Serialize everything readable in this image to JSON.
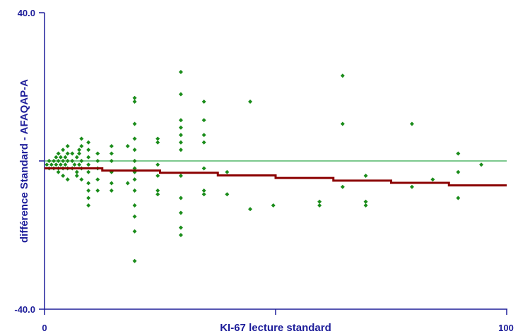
{
  "chart_data": {
    "type": "scatter",
    "title": "",
    "xlabel": "KI-67 lecture standard",
    "ylabel": "différence Standard - AFAQAP-A",
    "xlim": [
      0,
      100
    ],
    "ylim": [
      -40,
      40
    ],
    "x_tick_labels": [
      "0",
      "100"
    ],
    "y_tick_labels": [
      "40.0",
      "-40.0"
    ],
    "grid": false,
    "colors": {
      "points": "#1a8c1a",
      "reference_line": "#2ea84a",
      "trend_line": "#8b0000",
      "axis": "#1e1e9a"
    },
    "reference_line": {
      "y": 0
    },
    "trend_steps": [
      {
        "x0": 0,
        "x1": 12.5,
        "y": -2.0
      },
      {
        "x0": 12.5,
        "x1": 25,
        "y": -2.6
      },
      {
        "x0": 25,
        "x1": 37.5,
        "y": -3.2
      },
      {
        "x0": 37.5,
        "x1": 50,
        "y": -3.9
      },
      {
        "x0": 50,
        "x1": 62.5,
        "y": -4.6
      },
      {
        "x0": 62.5,
        "x1": 75,
        "y": -5.3
      },
      {
        "x0": 75,
        "x1": 87.5,
        "y": -5.9
      },
      {
        "x0": 87.5,
        "x1": 100,
        "y": -6.6
      }
    ],
    "points": [
      {
        "x": 0.5,
        "y": -1
      },
      {
        "x": 1,
        "y": -2
      },
      {
        "x": 1,
        "y": 0
      },
      {
        "x": 1.5,
        "y": -1
      },
      {
        "x": 2,
        "y": 0
      },
      {
        "x": 2,
        "y": -2
      },
      {
        "x": 2.5,
        "y": 1
      },
      {
        "x": 2.5,
        "y": -1
      },
      {
        "x": 3,
        "y": 0
      },
      {
        "x": 3,
        "y": -2
      },
      {
        "x": 3,
        "y": 2
      },
      {
        "x": 3,
        "y": -3
      },
      {
        "x": 3.5,
        "y": 1
      },
      {
        "x": 3.5,
        "y": -1
      },
      {
        "x": 4,
        "y": 0
      },
      {
        "x": 4,
        "y": -2
      },
      {
        "x": 4,
        "y": 3
      },
      {
        "x": 4,
        "y": -4
      },
      {
        "x": 4.5,
        "y": 1
      },
      {
        "x": 4.5,
        "y": -1
      },
      {
        "x": 5,
        "y": 0
      },
      {
        "x": 5,
        "y": 2
      },
      {
        "x": 5,
        "y": -2
      },
      {
        "x": 5,
        "y": -5
      },
      {
        "x": 5,
        "y": 4
      },
      {
        "x": 6,
        "y": 0
      },
      {
        "x": 6,
        "y": -2
      },
      {
        "x": 6,
        "y": 2
      },
      {
        "x": 6.5,
        "y": -1
      },
      {
        "x": 7,
        "y": 1
      },
      {
        "x": 7,
        "y": -3
      },
      {
        "x": 7,
        "y": -4
      },
      {
        "x": 7.5,
        "y": 2
      },
      {
        "x": 7.5,
        "y": 3
      },
      {
        "x": 7.5,
        "y": -1
      },
      {
        "x": 8,
        "y": -2
      },
      {
        "x": 8,
        "y": 4
      },
      {
        "x": 8,
        "y": 0
      },
      {
        "x": 8,
        "y": -5
      },
      {
        "x": 8,
        "y": 6
      },
      {
        "x": 9.5,
        "y": 5
      },
      {
        "x": 9.5,
        "y": 3
      },
      {
        "x": 9.5,
        "y": -3
      },
      {
        "x": 9.5,
        "y": -6
      },
      {
        "x": 9.5,
        "y": -8
      },
      {
        "x": 9.5,
        "y": -10
      },
      {
        "x": 9.5,
        "y": -12
      },
      {
        "x": 9.5,
        "y": 1
      },
      {
        "x": 9.5,
        "y": -1
      },
      {
        "x": 11.5,
        "y": 0
      },
      {
        "x": 11.5,
        "y": 2
      },
      {
        "x": 11.5,
        "y": -5
      },
      {
        "x": 11.5,
        "y": -8
      },
      {
        "x": 11.5,
        "y": -2
      },
      {
        "x": 14.5,
        "y": 4
      },
      {
        "x": 14.5,
        "y": 2
      },
      {
        "x": 14.5,
        "y": -3
      },
      {
        "x": 14.5,
        "y": -6
      },
      {
        "x": 14.5,
        "y": -8
      },
      {
        "x": 14.5,
        "y": 0
      },
      {
        "x": 18,
        "y": 4
      },
      {
        "x": 18,
        "y": -6
      },
      {
        "x": 19.5,
        "y": 17
      },
      {
        "x": 19.5,
        "y": 16
      },
      {
        "x": 19.5,
        "y": 10
      },
      {
        "x": 19.5,
        "y": 6
      },
      {
        "x": 19.5,
        "y": 3
      },
      {
        "x": 19.5,
        "y": 0
      },
      {
        "x": 19.5,
        "y": -3
      },
      {
        "x": 19.5,
        "y": -5
      },
      {
        "x": 19.5,
        "y": -8
      },
      {
        "x": 19.5,
        "y": -12
      },
      {
        "x": 19.5,
        "y": -15
      },
      {
        "x": 19.5,
        "y": -19
      },
      {
        "x": 19.5,
        "y": -27
      },
      {
        "x": 19.5,
        "y": -2
      },
      {
        "x": 24.5,
        "y": 6
      },
      {
        "x": 24.5,
        "y": 5
      },
      {
        "x": 24.5,
        "y": -4
      },
      {
        "x": 24.5,
        "y": -8
      },
      {
        "x": 24.5,
        "y": -9
      },
      {
        "x": 24.5,
        "y": -1
      },
      {
        "x": 29.5,
        "y": 24
      },
      {
        "x": 29.5,
        "y": 18
      },
      {
        "x": 29.5,
        "y": 11
      },
      {
        "x": 29.5,
        "y": 9
      },
      {
        "x": 29.5,
        "y": 7
      },
      {
        "x": 29.5,
        "y": 5
      },
      {
        "x": 29.5,
        "y": 3
      },
      {
        "x": 29.5,
        "y": -4
      },
      {
        "x": 29.5,
        "y": -10
      },
      {
        "x": 29.5,
        "y": -14
      },
      {
        "x": 29.5,
        "y": -18
      },
      {
        "x": 29.5,
        "y": -20
      },
      {
        "x": 34.5,
        "y": 16
      },
      {
        "x": 34.5,
        "y": 11
      },
      {
        "x": 34.5,
        "y": 7
      },
      {
        "x": 34.5,
        "y": 5
      },
      {
        "x": 34.5,
        "y": -8
      },
      {
        "x": 34.5,
        "y": -9
      },
      {
        "x": 34.5,
        "y": -2
      },
      {
        "x": 39.5,
        "y": -3
      },
      {
        "x": 39.5,
        "y": -9
      },
      {
        "x": 44.5,
        "y": 16
      },
      {
        "x": 44.5,
        "y": -13
      },
      {
        "x": 49.5,
        "y": -12
      },
      {
        "x": 59.5,
        "y": -11
      },
      {
        "x": 59.5,
        "y": -12
      },
      {
        "x": 64.5,
        "y": 23
      },
      {
        "x": 64.5,
        "y": 10
      },
      {
        "x": 64.5,
        "y": -7
      },
      {
        "x": 69.5,
        "y": -4
      },
      {
        "x": 69.5,
        "y": -11
      },
      {
        "x": 69.5,
        "y": -12
      },
      {
        "x": 79.5,
        "y": 10
      },
      {
        "x": 79.5,
        "y": -7
      },
      {
        "x": 84,
        "y": -5
      },
      {
        "x": 89.5,
        "y": 2
      },
      {
        "x": 89.5,
        "y": -3
      },
      {
        "x": 89.5,
        "y": -10
      },
      {
        "x": 94.5,
        "y": -1
      }
    ]
  }
}
